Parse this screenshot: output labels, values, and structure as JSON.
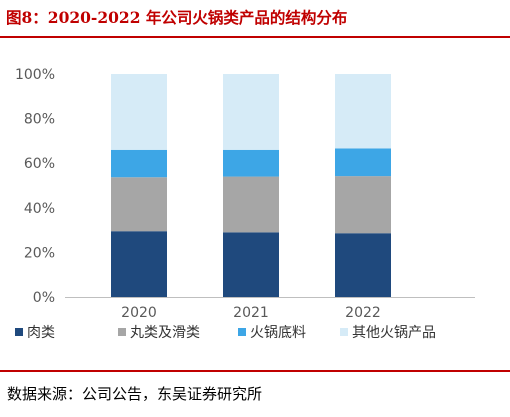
{
  "figure": {
    "title": "图8：2020-2022 年公司火锅类产品的结构分布",
    "source": "数据来源：公司公告，东吴证券研究所"
  },
  "chart_data": {
    "type": "bar",
    "stacked": true,
    "title": "",
    "xlabel": "",
    "ylabel": "",
    "categories": [
      "2020",
      "2021",
      "2022"
    ],
    "ylim": [
      0,
      100
    ],
    "yticks": [
      "0%",
      "20%",
      "40%",
      "60%",
      "80%",
      "100%"
    ],
    "grid": false,
    "legend_position": "bottom",
    "series": [
      {
        "name": "肉类",
        "values": [
          29.5,
          29,
          28.6
        ],
        "color": "#1f497d"
      },
      {
        "name": "丸类及滑类",
        "values": [
          24.2,
          25,
          25.6
        ],
        "color": "#a6a6a6"
      },
      {
        "name": "火锅底料",
        "values": [
          12.3,
          12,
          12.4
        ],
        "color": "#3da6e6"
      },
      {
        "name": "其他火锅产品",
        "values": [
          34,
          34,
          33.4
        ],
        "color": "#d6ebf7"
      }
    ]
  }
}
